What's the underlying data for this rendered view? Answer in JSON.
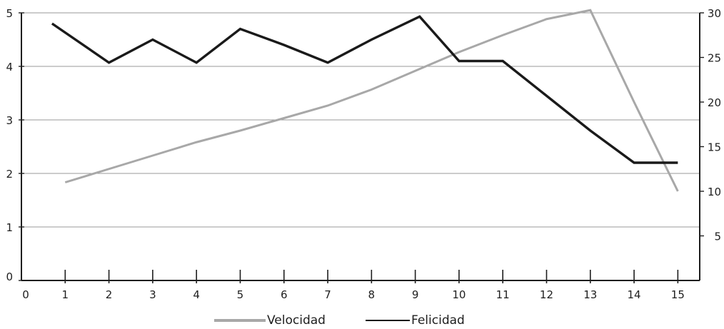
{
  "chart_data": {
    "type": "line",
    "x": [
      1,
      2,
      3,
      4,
      5,
      6,
      7,
      8,
      9,
      10,
      11,
      12,
      13,
      14,
      15
    ],
    "x_ticks": [
      0,
      1,
      2,
      3,
      4,
      5,
      6,
      7,
      8,
      9,
      10,
      11,
      12,
      13,
      14,
      15
    ],
    "y_left_ticks": [
      0,
      1,
      2,
      3,
      4,
      5
    ],
    "y_right_ticks": [
      5,
      10,
      15,
      20,
      25,
      30
    ],
    "xlim": [
      0,
      15.5
    ],
    "ylim_left": [
      0,
      5
    ],
    "ylim_right": [
      0,
      30
    ],
    "grid": true,
    "legend_position": "bottom-center",
    "series": [
      {
        "name": "Velocidad",
        "axis": "right",
        "color": "#a8a8a8",
        "x": [
          1,
          2,
          3,
          4,
          5,
          6,
          7,
          8,
          9,
          10,
          11,
          12,
          13,
          14,
          15
        ],
        "values": [
          11,
          12.5,
          14,
          15.5,
          16.8,
          18.2,
          19.6,
          21.4,
          23.5,
          25.6,
          27.5,
          29.3,
          30.3,
          20,
          10
        ]
      },
      {
        "name": "Felicidad",
        "axis": "left",
        "color": "#1a1a1a",
        "x": [
          0.7,
          2,
          3,
          4,
          5,
          6,
          7,
          8,
          9.1,
          10,
          11,
          12,
          13,
          14,
          15
        ],
        "values": [
          4.8,
          4.07,
          4.5,
          4.07,
          4.7,
          4.4,
          4.07,
          4.5,
          4.93,
          4.1,
          4.1,
          3.45,
          2.8,
          2.2,
          2.2
        ]
      }
    ]
  }
}
